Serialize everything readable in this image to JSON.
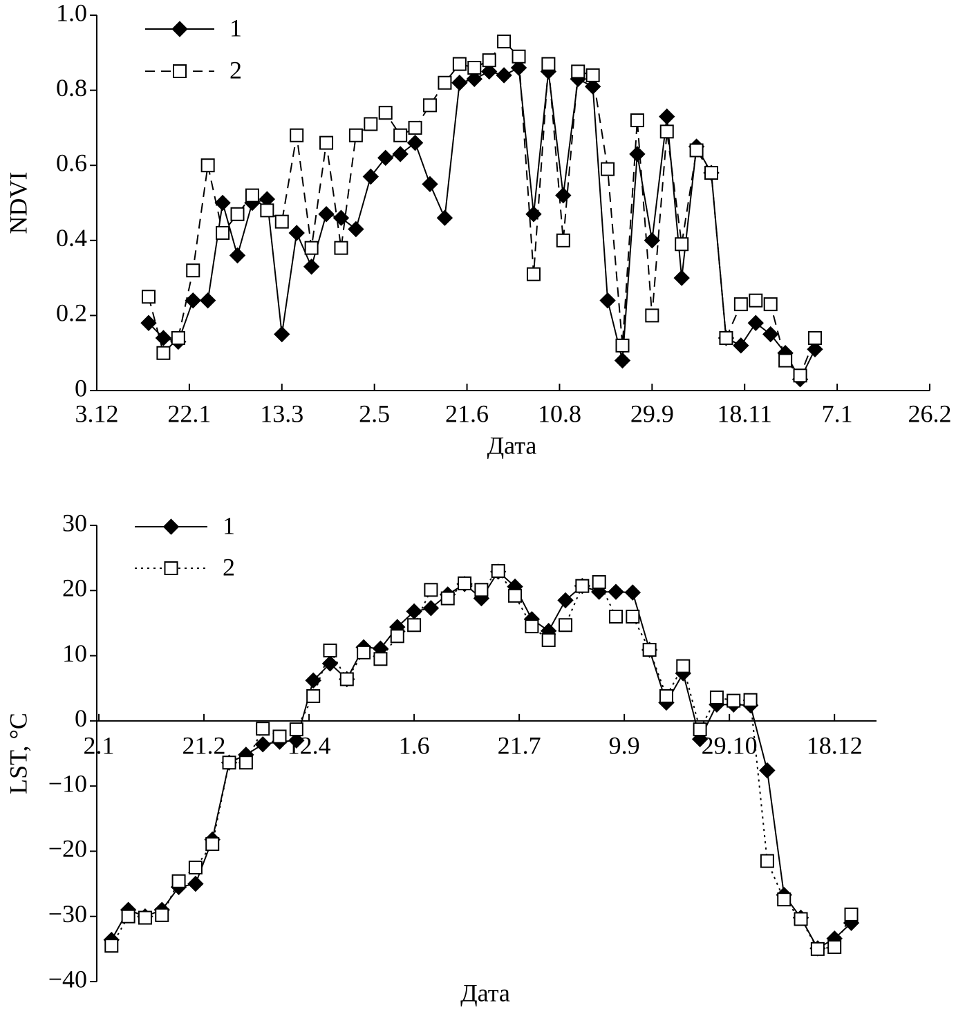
{
  "chart_data": [
    {
      "type": "line",
      "x_label": "Дата",
      "y_label": "NDVI",
      "x": [
        28,
        36,
        44,
        52,
        60,
        68,
        76,
        84,
        92,
        100,
        108,
        116,
        124,
        132,
        140,
        148,
        156,
        164,
        172,
        180,
        188,
        196,
        204,
        212,
        220,
        228,
        236,
        244,
        252,
        260,
        268,
        276,
        284,
        292,
        300,
        308,
        316,
        324,
        332,
        340,
        348,
        356,
        364,
        372,
        380,
        388
      ],
      "series": [
        {
          "name": "1",
          "color": "#000000",
          "linestyle": "solid",
          "marker": "diamond",
          "values": [
            0.18,
            0.14,
            0.13,
            0.24,
            0.24,
            0.5,
            0.36,
            0.5,
            0.51,
            0.15,
            0.42,
            0.33,
            0.47,
            0.46,
            0.43,
            0.57,
            0.62,
            0.63,
            0.66,
            0.55,
            0.46,
            0.82,
            0.83,
            0.85,
            0.84,
            0.86,
            0.47,
            0.85,
            0.52,
            0.83,
            0.81,
            0.24,
            0.08,
            0.63,
            0.4,
            0.73,
            0.3,
            0.65,
            0.58,
            0.14,
            0.12,
            0.18,
            0.15,
            0.1,
            0.03,
            0.11
          ]
        },
        {
          "name": "2",
          "color": "#000000",
          "linestyle": "dashed",
          "marker": "square",
          "values": [
            0.25,
            0.1,
            0.14,
            0.32,
            0.6,
            0.42,
            0.47,
            0.52,
            0.48,
            0.45,
            0.68,
            0.38,
            0.66,
            0.38,
            0.68,
            0.71,
            0.74,
            0.68,
            0.7,
            0.76,
            0.82,
            0.87,
            0.86,
            0.88,
            0.93,
            0.89,
            0.31,
            0.87,
            0.4,
            0.85,
            0.84,
            0.59,
            0.12,
            0.72,
            0.2,
            0.69,
            0.39,
            0.64,
            0.58,
            0.14,
            0.23,
            0.24,
            0.23,
            0.08,
            0.04,
            0.14
          ]
        }
      ],
      "xlim": [
        0,
        450
      ],
      "xticks": [
        {
          "value": 0,
          "label": "3.12"
        },
        {
          "value": 50,
          "label": "22.1"
        },
        {
          "value": 100,
          "label": "13.3"
        },
        {
          "value": 150,
          "label": "2.5"
        },
        {
          "value": 200,
          "label": "21.6"
        },
        {
          "value": 250,
          "label": "10.8"
        },
        {
          "value": 300,
          "label": "29.9"
        },
        {
          "value": 350,
          "label": "18.11"
        },
        {
          "value": 400,
          "label": "7.1"
        },
        {
          "value": 450,
          "label": "26.2"
        }
      ],
      "ylim": [
        0,
        1
      ],
      "yticks": [
        0,
        0.2,
        0.4,
        0.6,
        0.8,
        {
          "value": 1,
          "label": "1.0"
        }
      ],
      "grid": false,
      "legend": "upper left"
    },
    {
      "type": "line",
      "x_label": "Дата",
      "y_label": "LST, °C",
      "x": [
        6,
        14,
        22,
        30,
        38,
        46,
        54,
        62,
        70,
        78,
        86,
        94,
        102,
        110,
        118,
        126,
        134,
        142,
        150,
        158,
        166,
        174,
        182,
        190,
        198,
        206,
        214,
        222,
        230,
        238,
        246,
        254,
        262,
        270,
        278,
        286,
        294,
        302,
        310,
        318,
        326,
        334,
        342,
        350,
        358
      ],
      "series": [
        {
          "name": "1",
          "color": "#000000",
          "linestyle": "solid",
          "marker": "diamond",
          "values": [
            -33.6,
            -29,
            -30,
            -29,
            -25.5,
            -25,
            -18.2,
            -6.4,
            -5.2,
            -3.6,
            -3.2,
            -3.0,
            6.2,
            8.8,
            6.4,
            11.3,
            11.1,
            14.4,
            16.8,
            17.3,
            19.4,
            21.0,
            18.8,
            22.9,
            20.6,
            15.6,
            13.8,
            18.5,
            20.7,
            19.8,
            19.8,
            19.7,
            10.9,
            2.8,
            7.3,
            -2.8,
            2.5,
            2.5,
            2.4,
            -7.6,
            -26.7,
            -30.2,
            -34.9,
            -33.4,
            -31.0
          ]
        },
        {
          "name": "2",
          "color": "#000000",
          "linestyle": "dotted",
          "marker": "square",
          "values": [
            -34.5,
            -30.0,
            -30.2,
            -29.8,
            -24.6,
            -22.5,
            -18.9,
            -6.4,
            -6.4,
            -1.2,
            -2.4,
            -1.3,
            3.8,
            10.8,
            6.4,
            10.5,
            9.5,
            13.0,
            14.7,
            20.1,
            18.8,
            21.1,
            20.1,
            23.0,
            19.2,
            14.5,
            12.4,
            14.7,
            20.7,
            21.3,
            16.0,
            16.0,
            10.9,
            3.8,
            8.4,
            -1.3,
            3.6,
            3.1,
            3.2,
            -21.5,
            -27.4,
            -30.4,
            -35.0,
            -34.7,
            -29.7
          ]
        }
      ],
      "xlim": [
        -1,
        370
      ],
      "xticks": [
        {
          "value": 0,
          "label": "2.1"
        },
        {
          "value": 50,
          "label": "21.2"
        },
        {
          "value": 100,
          "label": "12.4"
        },
        {
          "value": 150,
          "label": "1.6"
        },
        {
          "value": 200,
          "label": "21.7"
        },
        {
          "value": 250,
          "label": "9.9"
        },
        {
          "value": 300,
          "label": "29.10"
        },
        {
          "value": 350,
          "label": "18.12"
        }
      ],
      "ylim": [
        -40,
        30
      ],
      "yticks": [
        {
          "value": -40,
          "label": "−40"
        },
        {
          "value": -30,
          "label": "−30"
        },
        {
          "value": -20,
          "label": "−20"
        },
        {
          "value": -10,
          "label": "−10"
        },
        0,
        10,
        20,
        30
      ],
      "grid": false,
      "legend": "upper left"
    }
  ]
}
